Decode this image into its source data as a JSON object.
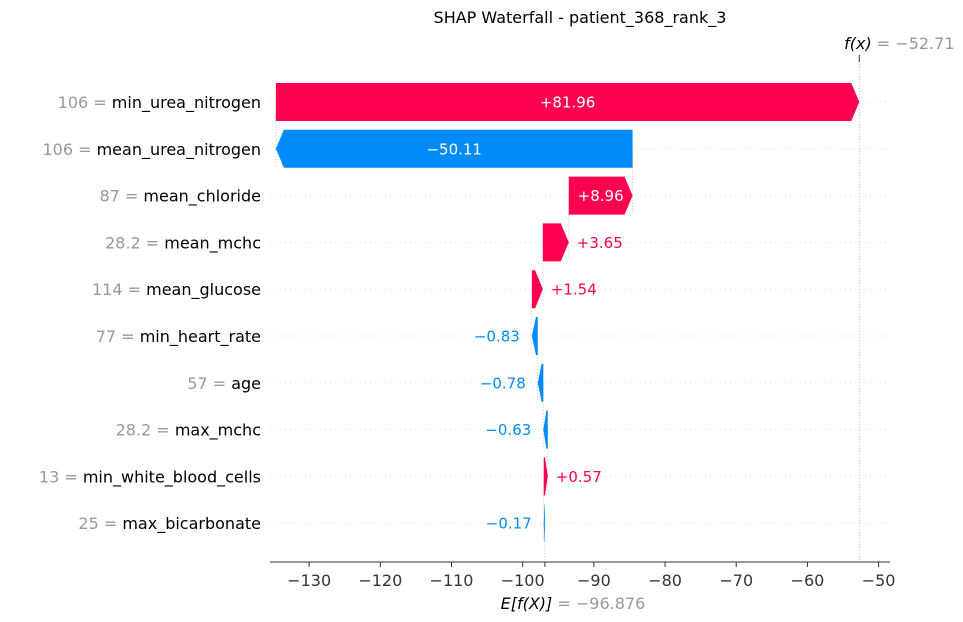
{
  "chart_data": {
    "type": "waterfall",
    "title": "SHAP Waterfall - patient_368_rank_3",
    "base_value": -96.876,
    "base_label_expr": "E[f(X)]",
    "base_label_value": "= −96.876",
    "output_value": -52.71,
    "output_label_expr": "f(x)",
    "output_label_value": "= −52.71",
    "xlim": [
      -135.5,
      -48.4
    ],
    "xticks": [
      -130,
      -120,
      -110,
      -100,
      -90,
      -80,
      -70,
      -60,
      -50
    ],
    "xtick_labels": [
      "−130",
      "−120",
      "−110",
      "−100",
      "−90",
      "−80",
      "−70",
      "−60",
      "−50"
    ],
    "features": [
      {
        "value": "106",
        "name": "min_urea_nitrogen",
        "shap": 81.96,
        "label": "+81.96"
      },
      {
        "value": "106",
        "name": "mean_urea_nitrogen",
        "shap": -50.11,
        "label": "−50.11"
      },
      {
        "value": "87",
        "name": "mean_chloride",
        "shap": 8.96,
        "label": "+8.96"
      },
      {
        "value": "28.2",
        "name": "mean_mchc",
        "shap": 3.65,
        "label": "+3.65"
      },
      {
        "value": "114",
        "name": "mean_glucose",
        "shap": 1.54,
        "label": "+1.54"
      },
      {
        "value": "77",
        "name": "min_heart_rate",
        "shap": -0.83,
        "label": "−0.83"
      },
      {
        "value": "57",
        "name": "age",
        "shap": -0.78,
        "label": "−0.78"
      },
      {
        "value": "28.2",
        "name": "max_mchc",
        "shap": -0.63,
        "label": "−0.63"
      },
      {
        "value": "13",
        "name": "min_white_blood_cells",
        "shap": 0.57,
        "label": "+0.57"
      },
      {
        "value": "25",
        "name": "max_bicarbonate",
        "shap": -0.17,
        "label": "−0.17"
      }
    ],
    "colors": {
      "positive": "#ff0051",
      "negative": "#008bfb",
      "muted": "#999999",
      "grid": "#dddddd"
    }
  }
}
